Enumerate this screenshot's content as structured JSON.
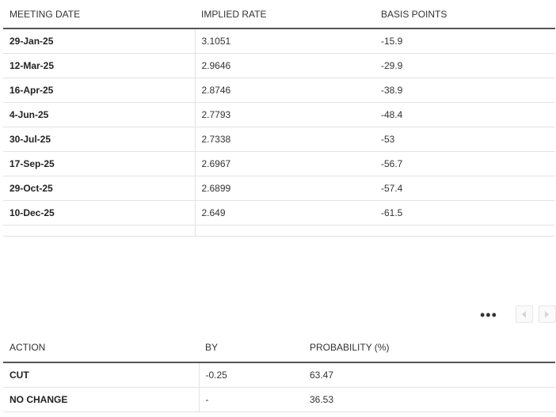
{
  "meetings_table": {
    "headers": [
      "MEETING DATE",
      "IMPLIED RATE",
      "BASIS POINTS"
    ],
    "rows": [
      {
        "date": "29-Jan-25",
        "rate": "3.1051",
        "bps": "-15.9"
      },
      {
        "date": "12-Mar-25",
        "rate": "2.9646",
        "bps": "-29.9"
      },
      {
        "date": "16-Apr-25",
        "rate": "2.8746",
        "bps": "-38.9"
      },
      {
        "date": "4-Jun-25",
        "rate": "2.7793",
        "bps": "-48.4"
      },
      {
        "date": "30-Jul-25",
        "rate": "2.7338",
        "bps": "-53"
      },
      {
        "date": "17-Sep-25",
        "rate": "2.6967",
        "bps": "-56.7"
      },
      {
        "date": "29-Oct-25",
        "rate": "2.6899",
        "bps": "-57.4"
      },
      {
        "date": "10-Dec-25",
        "rate": "2.649",
        "bps": "-61.5"
      }
    ]
  },
  "toolbar": {
    "more_label": "•••",
    "prev_icon": "chevron-left-icon",
    "next_icon": "chevron-right-icon"
  },
  "action_table": {
    "headers": [
      "ACTION",
      "BY",
      "PROBABILITY (%)"
    ],
    "rows": [
      {
        "action": "CUT",
        "by": "-0.25",
        "probability": "63.47"
      },
      {
        "action": "NO CHANGE",
        "by": "-",
        "probability": "36.53"
      }
    ]
  },
  "colors": {
    "header_rule": "#555555",
    "row_rule": "#e3e3e3",
    "text": "#222222"
  }
}
